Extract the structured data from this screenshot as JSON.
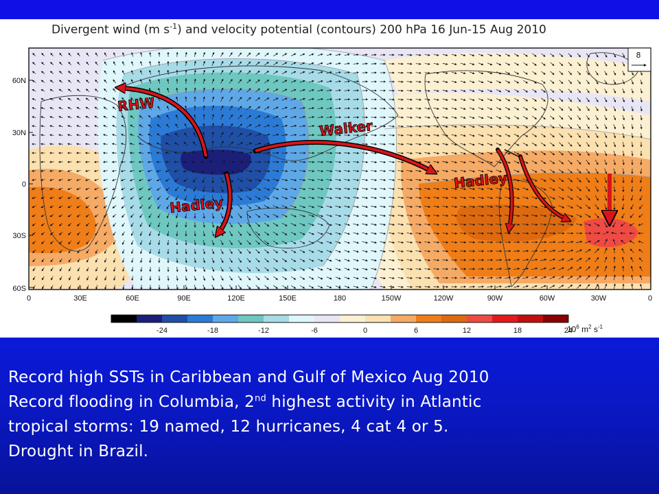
{
  "figure": {
    "title_part1": "Divergent wind (m s",
    "title_exp": "-1",
    "title_part2": ") and velocity potential (contours)   200 hPa   16 Jun-15 Aug 2010",
    "reference_vector_label": "8",
    "lat_labels": [
      "60N",
      "30N",
      "0",
      "30S",
      "60S"
    ],
    "lon_labels": [
      "0",
      "30E",
      "60E",
      "90E",
      "120E",
      "150E",
      "180",
      "150W",
      "120W",
      "90W",
      "60W",
      "30W",
      "0"
    ],
    "colorbar": {
      "ticks": [
        "-24",
        "-18",
        "-12",
        "-6",
        "0",
        "6",
        "12",
        "18",
        "24"
      ],
      "units_prefix": "10",
      "units_exp": "6",
      "units_suffix": " m",
      "units_exp2": "2",
      "units_tail": " s",
      "units_exp3": "-1",
      "colors": [
        "#000000",
        "#1b1f7a",
        "#1f4fa6",
        "#2b7bd6",
        "#5fa8e8",
        "#6ec7c1",
        "#a7dbe8",
        "#dff6fb",
        "#e8e6f5",
        "#fcf0d2",
        "#fbe0b0",
        "#f5aa66",
        "#ef7d18",
        "#dd6a10",
        "#ef4a44",
        "#e31a1c",
        "#c40e0e",
        "#8b0000"
      ]
    },
    "arrows": [
      {
        "label": "RHW"
      },
      {
        "label": "Walker"
      },
      {
        "label": "Hadley"
      },
      {
        "label": "Hadley"
      }
    ]
  },
  "caption": {
    "line1": "Record high SSTs in Caribbean and Gulf of Mexico Aug 2010",
    "line2a": "Record flooding in Columbia, 2",
    "line2sup": "nd",
    "line2b": " highest activity in Atlantic",
    "line3": "tropical storms: 19 named, 12 hurricanes, 4 cat 4 or 5.",
    "line4": "Drought in Brazil."
  }
}
